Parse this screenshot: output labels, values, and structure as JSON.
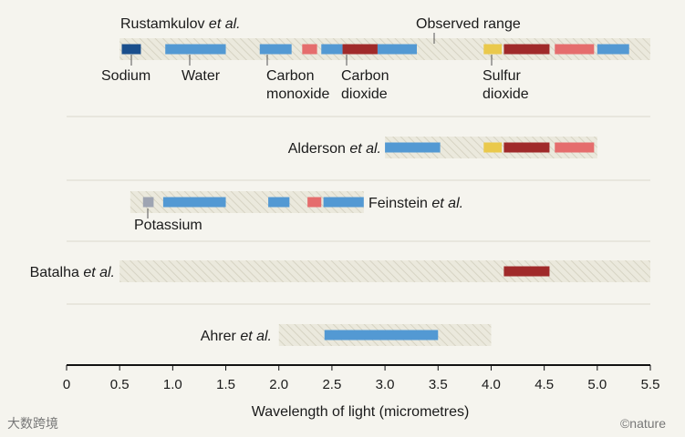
{
  "chart_data": {
    "type": "range",
    "xlabel": "Wavelength of light (micrometres)",
    "xlim": [
      0,
      5.5
    ],
    "xticks": [
      "0",
      "0.5",
      "1.0",
      "1.5",
      "2.0",
      "2.5",
      "3.0",
      "3.5",
      "4.0",
      "4.5",
      "5.0",
      "5.5"
    ],
    "colors": {
      "Sodium": "#1a4f8c",
      "Water": "#5399d3",
      "Carbon monoxide": "#e56d6d",
      "Carbon dioxide": "#a02a2a",
      "Sulfur dioxide": "#eac94c",
      "Potassium": "#9ea4b2"
    },
    "studies": [
      {
        "name": "Rustamkulov",
        "suffix": "et al.",
        "observed": [
          0.5,
          5.5
        ],
        "features": [
          {
            "molecule": "Sodium",
            "start": 0.52,
            "end": 0.7
          },
          {
            "molecule": "Water",
            "start": 0.93,
            "end": 1.5
          },
          {
            "molecule": "Water",
            "start": 1.82,
            "end": 2.12
          },
          {
            "molecule": "Carbon monoxide",
            "start": 2.22,
            "end": 2.36
          },
          {
            "molecule": "Water",
            "start": 2.4,
            "end": 2.6
          },
          {
            "molecule": "Carbon dioxide",
            "start": 2.6,
            "end": 2.93
          },
          {
            "molecule": "Water",
            "start": 2.93,
            "end": 3.3
          },
          {
            "molecule": "Sulfur dioxide",
            "start": 3.93,
            "end": 4.1
          },
          {
            "molecule": "Carbon dioxide",
            "start": 4.12,
            "end": 4.55
          },
          {
            "molecule": "Carbon monoxide",
            "start": 4.6,
            "end": 4.97
          },
          {
            "molecule": "Water",
            "start": 5.0,
            "end": 5.3
          }
        ]
      },
      {
        "name": "Alderson",
        "suffix": "et al.",
        "observed": [
          3.0,
          5.0
        ],
        "features": [
          {
            "molecule": "Water",
            "start": 3.0,
            "end": 3.52
          },
          {
            "molecule": "Sulfur dioxide",
            "start": 3.93,
            "end": 4.1
          },
          {
            "molecule": "Carbon dioxide",
            "start": 4.12,
            "end": 4.55
          },
          {
            "molecule": "Carbon monoxide",
            "start": 4.6,
            "end": 4.97
          }
        ]
      },
      {
        "name": "Feinstein",
        "suffix": "et al.",
        "observed": [
          0.6,
          2.8
        ],
        "features": [
          {
            "molecule": "Potassium",
            "start": 0.72,
            "end": 0.82
          },
          {
            "molecule": "Water",
            "start": 0.91,
            "end": 1.5
          },
          {
            "molecule": "Water",
            "start": 1.9,
            "end": 2.1
          },
          {
            "molecule": "Carbon monoxide",
            "start": 2.27,
            "end": 2.4
          },
          {
            "molecule": "Water",
            "start": 2.42,
            "end": 2.8
          }
        ]
      },
      {
        "name": "Batalha",
        "suffix": "et al.",
        "observed": [
          0.5,
          5.5
        ],
        "features": [
          {
            "molecule": "Carbon dioxide",
            "start": 4.12,
            "end": 4.55
          }
        ]
      },
      {
        "name": "Ahrer",
        "suffix": "et al.",
        "observed": [
          2.0,
          4.0
        ],
        "features": [
          {
            "molecule": "Water",
            "start": 2.43,
            "end": 3.5
          }
        ]
      }
    ],
    "annotations": [
      {
        "text": "Observed range"
      },
      {
        "text": "Sodium"
      },
      {
        "text": "Water"
      },
      {
        "text": [
          "Carbon",
          "monoxide"
        ]
      },
      {
        "text": [
          "Carbon",
          "dioxide"
        ]
      },
      {
        "text": [
          "Sulfur",
          "dioxide"
        ]
      },
      {
        "text": "Potassium"
      }
    ]
  },
  "footer": {
    "watermark": "大数跨境",
    "credit": "©nature"
  }
}
